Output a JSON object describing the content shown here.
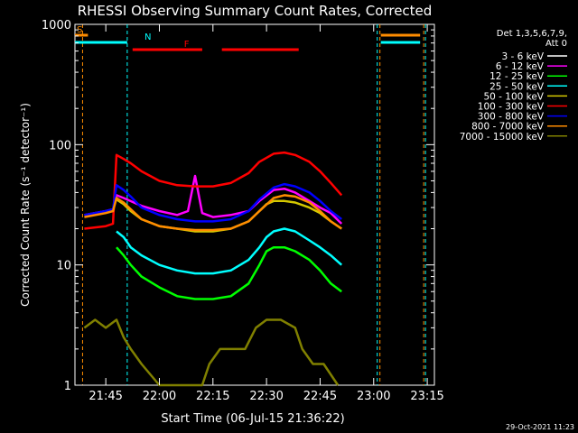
{
  "chart_data": {
    "type": "line",
    "title": "RHESSI Observing Summary Count Rates, Corrected",
    "xlabel": "Start Time (06-Jul-15 21:36:22)",
    "ylabel": "Corrected Count Rate (s⁻¹ detector⁻¹)",
    "yscale": "log",
    "ylim": [
      1,
      1000
    ],
    "xlim": [
      "21:36:22",
      "23:17:00"
    ],
    "xticks": [
      "21:45",
      "22:00",
      "22:15",
      "22:30",
      "22:45",
      "23:00",
      "23:15"
    ],
    "yticks": [
      "1",
      "10",
      "100",
      "1000"
    ],
    "legend_title": [
      "Det 1,3,5,6,7,9,",
      "Att 0"
    ],
    "legend_position": "top-right",
    "timestamp": "29-Oct-2021 11:23",
    "flags": [
      {
        "label": "S",
        "color": "#ff8c00",
        "segments": [
          [
            "21:36:22",
            "21:40:00"
          ],
          [
            "23:02:00",
            "23:13:00"
          ]
        ]
      },
      {
        "label": "N",
        "color": "#00ffff",
        "segments": [
          [
            "21:36:22",
            "21:51:00"
          ],
          [
            "23:02:00",
            "23:13:00"
          ]
        ]
      },
      {
        "label": "F",
        "color": "#ff0000",
        "segments": [
          [
            "21:52:30",
            "22:12:00"
          ],
          [
            "22:17:30",
            "22:39:00"
          ]
        ]
      }
    ],
    "vertical_markers": [
      {
        "time": "21:38:30",
        "color": "#ff8c00"
      },
      {
        "time": "21:51:00",
        "color": "#00ffff"
      },
      {
        "time": "23:01:00",
        "color": "#00ffff"
      },
      {
        "time": "23:01:45",
        "color": "#ff8c00"
      },
      {
        "time": "23:14:00",
        "color": "#ff8c00"
      },
      {
        "time": "23:14:30",
        "color": "#00ffff"
      }
    ],
    "series": [
      {
        "name": "3 - 6 keV",
        "color": "#000000",
        "x": [
          "21:39",
          "21:45",
          "21:47",
          "21:48",
          "21:50",
          "21:55",
          "22:00",
          "22:05",
          "22:10",
          "22:15",
          "22:20",
          "22:25",
          "22:28",
          "22:32",
          "22:35",
          "22:38",
          "22:42",
          "22:45",
          "22:48",
          "22:51"
        ],
        "values": [
          27,
          29,
          30,
          47,
          45,
          40,
          37,
          37,
          37,
          36,
          37,
          40,
          48,
          56,
          55,
          50,
          44,
          40,
          35,
          31
        ]
      },
      {
        "name": "6 - 12 keV",
        "color": "#ff00ff",
        "x": [
          "21:39",
          "21:45",
          "21:47",
          "21:48",
          "21:50",
          "21:55",
          "22:00",
          "22:05",
          "22:08",
          "22:10",
          "22:12",
          "22:15",
          "22:20",
          "22:25",
          "22:28",
          "22:32",
          "22:35",
          "22:38",
          "22:42",
          "22:45",
          "22:48",
          "22:51"
        ],
        "values": [
          26,
          28,
          29,
          38,
          36,
          31,
          28,
          26,
          28,
          55,
          27,
          25,
          26,
          28,
          34,
          42,
          43,
          40,
          34,
          30,
          27,
          22
        ]
      },
      {
        "name": "12 - 25 keV",
        "color": "#00ff00",
        "x": [
          "21:48",
          "21:50",
          "21:52",
          "21:55",
          "22:00",
          "22:05",
          "22:10",
          "22:15",
          "22:20",
          "22:25",
          "22:28",
          "22:30",
          "22:32",
          "22:35",
          "22:38",
          "22:42",
          "22:45",
          "22:48",
          "22:51"
        ],
        "values": [
          14,
          12,
          10,
          8,
          6.5,
          5.5,
          5.2,
          5.2,
          5.5,
          7,
          10,
          13,
          14,
          14,
          13,
          11,
          9,
          7,
          6
        ]
      },
      {
        "name": "25 - 50 keV",
        "color": "#00ffff",
        "x": [
          "21:48",
          "21:50",
          "21:52",
          "21:55",
          "22:00",
          "22:05",
          "22:10",
          "22:15",
          "22:20",
          "22:25",
          "22:28",
          "22:30",
          "22:32",
          "22:35",
          "22:38",
          "22:42",
          "22:45",
          "22:48",
          "22:51"
        ],
        "values": [
          19,
          17,
          14,
          12,
          10,
          9,
          8.5,
          8.5,
          9,
          11,
          14,
          17,
          19,
          20,
          19,
          16,
          14,
          12,
          10
        ]
      },
      {
        "name": "50 - 100 keV",
        "color": "#d4c800",
        "x": [
          "21:48",
          "21:50",
          "21:52",
          "21:55",
          "22:00",
          "22:05",
          "22:10",
          "22:15",
          "22:20",
          "22:25",
          "22:28",
          "22:30",
          "22:32",
          "22:35",
          "22:38",
          "22:42",
          "22:45",
          "22:48",
          "22:51"
        ],
        "values": [
          35,
          32,
          28,
          24,
          21,
          20,
          19,
          19,
          20,
          23,
          28,
          32,
          34,
          34,
          33,
          30,
          27,
          23,
          20
        ]
      },
      {
        "name": "100 - 300 keV",
        "color": "#ff0000",
        "x": [
          "21:39",
          "21:45",
          "21:47",
          "21:48",
          "21:50",
          "21:52",
          "21:55",
          "22:00",
          "22:05",
          "22:10",
          "22:15",
          "22:20",
          "22:25",
          "22:28",
          "22:32",
          "22:35",
          "22:38",
          "22:42",
          "22:45",
          "22:48",
          "22:51"
        ],
        "values": [
          20,
          21,
          22,
          82,
          76,
          70,
          60,
          50,
          46,
          45,
          45,
          48,
          58,
          72,
          84,
          86,
          82,
          72,
          60,
          48,
          38
        ]
      },
      {
        "name": "300 - 800 keV",
        "color": "#0000ff",
        "x": [
          "21:39",
          "21:45",
          "21:47",
          "21:48",
          "21:50",
          "21:52",
          "21:55",
          "22:00",
          "22:05",
          "22:10",
          "22:15",
          "22:20",
          "22:25",
          "22:28",
          "22:32",
          "22:35",
          "22:38",
          "22:42",
          "22:45",
          "22:48",
          "22:51"
        ],
        "values": [
          26,
          28,
          29,
          46,
          42,
          37,
          30,
          26,
          24,
          23,
          23,
          24,
          28,
          35,
          44,
          47,
          45,
          40,
          34,
          28,
          24
        ]
      },
      {
        "name": "800 - 7000 keV",
        "color": "#ff8c00",
        "x": [
          "21:39",
          "21:45",
          "21:47",
          "21:48",
          "21:50",
          "21:52",
          "21:55",
          "22:00",
          "22:05",
          "22:10",
          "22:15",
          "22:20",
          "22:25",
          "22:28",
          "22:32",
          "22:35",
          "22:38",
          "22:42",
          "22:45",
          "22:48",
          "22:51"
        ],
        "values": [
          25,
          27,
          28,
          36,
          33,
          29,
          24,
          21,
          20,
          19.5,
          19.5,
          20,
          23,
          28,
          36,
          38,
          37,
          33,
          28,
          23,
          20
        ]
      },
      {
        "name": "7000 - 15000 keV",
        "color": "#808000",
        "x": [
          "21:39",
          "21:42",
          "21:45",
          "21:48",
          "21:50",
          "21:52",
          "21:55",
          "22:00",
          "22:12",
          "22:14",
          "22:17",
          "22:20",
          "22:24",
          "22:27",
          "22:30",
          "22:34",
          "22:38",
          "22:40",
          "22:43",
          "22:46",
          "22:50"
        ],
        "values": [
          3,
          3.5,
          3,
          3.5,
          2.5,
          2,
          1.5,
          1,
          1,
          1.5,
          2,
          2,
          2,
          3,
          3.5,
          3.5,
          3,
          2,
          1.5,
          1.5,
          1
        ]
      }
    ]
  }
}
